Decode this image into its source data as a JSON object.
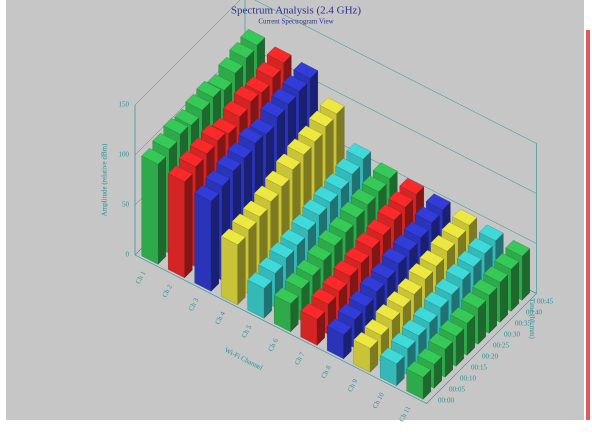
{
  "chart_data": {
    "type": "bar3d",
    "title": "Spectrum Analysis (2.4 GHz)",
    "subtitle": "Current Spectrogram View",
    "x_label": "Wi-Fi Channel",
    "y_label": "Amplitude (relative dBm)",
    "z_label": "Time (hh:mm)",
    "categories": [
      "00:00",
      "00:05",
      "00:10",
      "00:15",
      "00:20",
      "00:25",
      "00:30",
      "00:35",
      "00:40",
      "00:45"
    ],
    "ylim": [
      0,
      150
    ],
    "yticks": [
      0,
      50,
      100,
      150
    ],
    "grid": true,
    "series": [
      {
        "name": "Ch 1",
        "color": "#2eaa4a",
        "values": [
          100,
          104,
          108,
          106,
          110,
          112,
          108,
          114,
          118,
          120
        ]
      },
      {
        "name": "Ch 2",
        "color": "#d42424",
        "values": [
          96,
          100,
          102,
          104,
          100,
          106,
          110,
          108,
          112,
          116
        ]
      },
      {
        "name": "Ch 3",
        "color": "#2a34b8",
        "values": [
          90,
          94,
          98,
          100,
          104,
          102,
          108,
          110,
          112,
          114
        ]
      },
      {
        "name": "Ch 4",
        "color": "#c9c437",
        "values": [
          60,
          64,
          66,
          70,
          74,
          80,
          84,
          86,
          90,
          92
        ]
      },
      {
        "name": "Ch 5",
        "color": "#35b8b8",
        "values": [
          30,
          34,
          38,
          40,
          44,
          48,
          50,
          52,
          56,
          60
        ]
      },
      {
        "name": "Ch 6",
        "color": "#2eaa4a",
        "values": [
          28,
          32,
          34,
          38,
          42,
          44,
          48,
          50,
          52,
          54
        ]
      },
      {
        "name": "Ch 7",
        "color": "#d42424",
        "values": [
          26,
          30,
          32,
          36,
          38,
          42,
          44,
          48,
          50,
          52
        ]
      },
      {
        "name": "Ch 8",
        "color": "#2a34b8",
        "values": [
          24,
          28,
          30,
          34,
          36,
          40,
          42,
          44,
          48,
          50
        ]
      },
      {
        "name": "Ch 9",
        "color": "#c9c437",
        "values": [
          24,
          26,
          30,
          32,
          34,
          38,
          40,
          44,
          46,
          48
        ]
      },
      {
        "name": "Ch 10",
        "color": "#35b8b8",
        "values": [
          22,
          26,
          28,
          30,
          34,
          36,
          40,
          42,
          44,
          46
        ]
      },
      {
        "name": "Ch 11",
        "color": "#2eaa4a",
        "values": [
          22,
          24,
          28,
          30,
          32,
          36,
          38,
          40,
          42,
          44
        ]
      }
    ]
  }
}
